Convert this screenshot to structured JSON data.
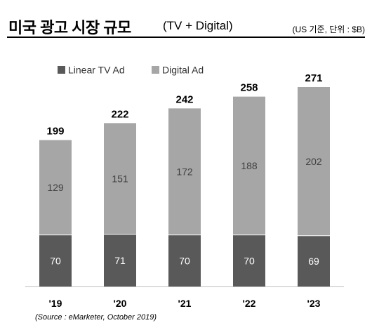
{
  "header": {
    "title": "미국 광고 시장 규모",
    "subtitle": "(TV + Digital)",
    "unit_note": "(US 기준, 단위 : $B)"
  },
  "source": "(Source : eMarketer, October 2019)",
  "chart_data": {
    "type": "bar",
    "stacked": true,
    "categories": [
      "'19",
      "'20",
      "'21",
      "'22",
      "'23"
    ],
    "series": [
      {
        "name": "Linear TV Ad",
        "values": [
          70,
          71,
          70,
          70,
          69
        ],
        "color": "#595959"
      },
      {
        "name": "Digital Ad",
        "values": [
          129,
          151,
          172,
          188,
          202
        ],
        "color": "#a6a6a6"
      }
    ],
    "totals": [
      199,
      222,
      242,
      258,
      271
    ],
    "title": "미국 광고 시장 규모",
    "subtitle": "(TV + Digital)",
    "legend_position": "top-left",
    "grid": false,
    "ylim": [
      0,
      271
    ]
  }
}
